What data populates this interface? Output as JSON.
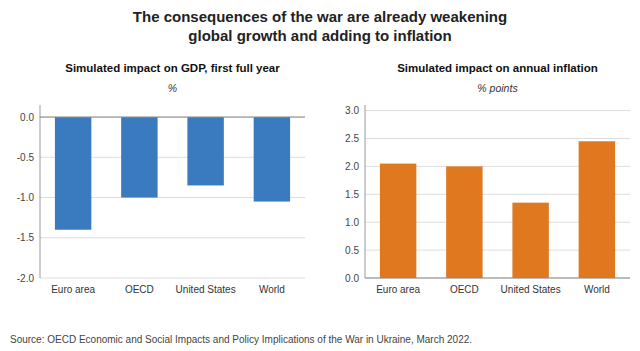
{
  "title": "The consequences of the war are already weakening\nglobal growth and adding to inflation",
  "annotations": [
    "Source: OECD Economic and Social Impacts and Policy Implications of the War in Ukraine, March 2022."
  ],
  "chart_data": [
    {
      "type": "bar",
      "title": "Simulated impact on GDP, first full year",
      "subtitle": "%",
      "categories": [
        "Euro area",
        "OECD",
        "United States",
        "World"
      ],
      "values": [
        -1.4,
        -1.0,
        -0.85,
        -1.05
      ],
      "color": "#3a7abf",
      "ylim": [
        -2.0,
        0.15
      ],
      "yticks": [
        {
          "value": 0.0,
          "label": "0.0"
        },
        -0.5,
        {
          "value": -1.0,
          "label": "-1.0"
        },
        -1.5,
        {
          "value": -2.0,
          "label": "-2.0"
        }
      ],
      "grid": true
    },
    {
      "type": "bar",
      "title": "Simulated impact on annual inflation",
      "subtitle": "% points",
      "categories": [
        "Euro area",
        "OECD",
        "United States",
        "World"
      ],
      "values": [
        2.05,
        2.0,
        1.35,
        2.45
      ],
      "color": "#e07820",
      "ylim": [
        0.0,
        3.1
      ],
      "yticks": [
        {
          "value": 0.0,
          "label": "0.0"
        },
        0.5,
        {
          "value": 1.0,
          "label": "1.0"
        },
        1.5,
        {
          "value": 2.0,
          "label": "2.0"
        },
        2.5,
        {
          "value": 3.0,
          "label": "3.0"
        }
      ],
      "grid": true
    }
  ]
}
